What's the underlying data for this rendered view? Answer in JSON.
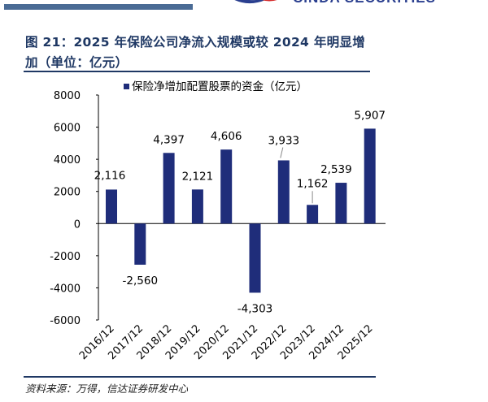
{
  "header": {
    "logo_text": "CINDA SECURITIES",
    "title": "图 21：2025 年保险公司净流入规模或较 2024 年明显增加（单位：亿元）"
  },
  "footer": {
    "source": "资料来源：万得，信达证券研发中心"
  },
  "colors": {
    "bar": "#1f2d7a",
    "title": "#1f3864",
    "topbar": "#4a6b95"
  },
  "chart_data": {
    "type": "bar",
    "categories": [
      "2016/12",
      "2017/12",
      "2018/12",
      "2019/12",
      "2020/12",
      "2021/12",
      "2022/12",
      "2023/12",
      "2024/12",
      "2025/12"
    ],
    "series": [
      {
        "name": "保险净增加配置股票的资金（亿元）",
        "values": [
          2116,
          -2560,
          4397,
          2121,
          4606,
          -4303,
          3933,
          1162,
          2539,
          5907
        ]
      }
    ],
    "data_labels": [
      "2,116",
      "-2,560",
      "4,397",
      "2,121",
      "4,606",
      "-4,303",
      "3,933",
      "1,162",
      "2,539",
      "5,907"
    ],
    "yticks": [
      "8000",
      "6000",
      "4000",
      "2000",
      "0",
      "-2000",
      "-4000",
      "-6000"
    ],
    "ylim": [
      -6000,
      8000
    ],
    "grid": false,
    "legend": "top"
  }
}
